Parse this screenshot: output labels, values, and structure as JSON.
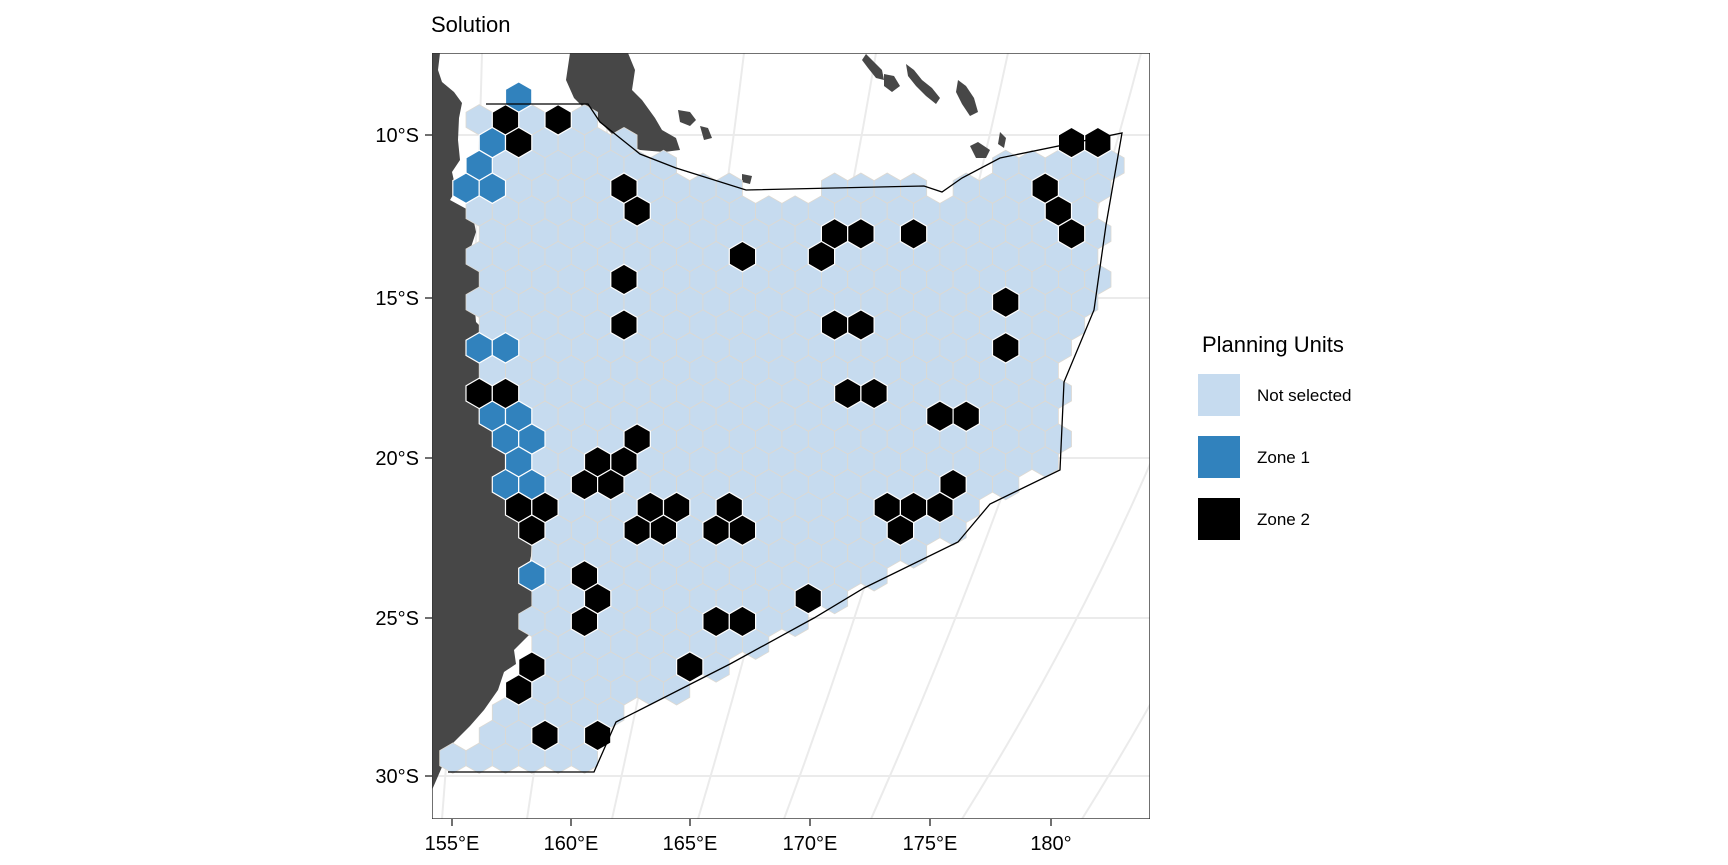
{
  "chart_data": {
    "type": "map",
    "title": "Solution",
    "x_axis": {
      "ticks": [
        "155°E",
        "160°E",
        "165°E",
        "170°E",
        "175°E",
        "180°"
      ],
      "values": [
        155,
        160,
        165,
        170,
        175,
        180
      ]
    },
    "y_axis": {
      "ticks": [
        "10°S",
        "15°S",
        "20°S",
        "25°S",
        "30°S"
      ],
      "values": [
        -10,
        -15,
        -20,
        -25,
        -30
      ]
    },
    "xlim": [
      154.3,
      184.0
    ],
    "ylim": [
      -31.4,
      -7.5
    ],
    "grid": true,
    "legend": {
      "title": "Planning Units",
      "position": "right",
      "items": [
        {
          "label": "Not selected",
          "color": "#c6dbef"
        },
        {
          "label": "Zone 1",
          "color": "#3182bd"
        },
        {
          "label": "Zone 2",
          "color": "#000000"
        }
      ]
    },
    "colors": {
      "not_selected": "#c6dbef",
      "zone1": "#3182bd",
      "zone2": "#000000",
      "land": "#474747",
      "grid": "#ebebeb",
      "hex_border": "#ddd9d2"
    }
  }
}
